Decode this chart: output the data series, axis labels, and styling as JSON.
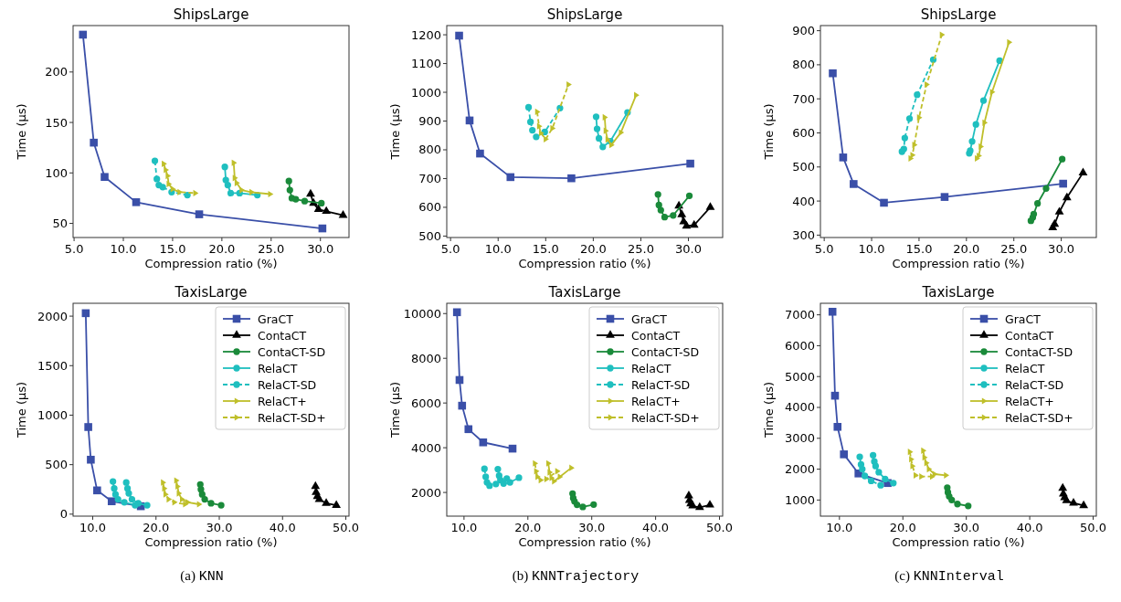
{
  "chart_data": [
    {
      "type": "line",
      "title": "ShipsLarge",
      "xlabel": "Compression ratio (%)",
      "ylabel": "Time (µs)",
      "legend": false,
      "xlim": [
        4.9,
        32.9
      ],
      "ylim": [
        36,
        246
      ],
      "xticks": [
        {
          "value": 5,
          "label": "5.0"
        },
        {
          "value": 10,
          "label": "10.0"
        },
        {
          "value": 15,
          "label": "15.0"
        },
        {
          "value": 20,
          "label": "20.0"
        },
        {
          "value": 25,
          "label": "25.0"
        },
        {
          "value": 30,
          "label": "30.0"
        }
      ],
      "yticks": [
        50,
        100,
        150,
        200
      ],
      "series": [
        {
          "color": "#3a4fa8",
          "marker": "square",
          "line_style": "solid",
          "x": [
            5.9,
            7.0,
            8.1,
            11.3,
            17.7,
            30.2
          ],
          "values": [
            237,
            130,
            96,
            71,
            59,
            45
          ]
        },
        {
          "color": "#000000",
          "marker": "triangle",
          "line_style": "solid",
          "x": [
            29.0,
            29.3,
            29.8,
            30.6,
            32.3
          ],
          "values": [
            79,
            70,
            64,
            62,
            58
          ]
        },
        {
          "color": "#1a8a3a",
          "marker": "circle",
          "line_style": "solid",
          "x": [
            26.8,
            26.9,
            27.1,
            27.5,
            28.4,
            30.1
          ],
          "values": [
            92,
            83,
            75,
            74,
            72,
            70
          ]
        },
        {
          "color": "#1fbfbf",
          "marker": "circle",
          "line_style": "solid",
          "x": [
            20.3,
            20.4,
            20.6,
            20.9,
            21.8,
            23.6
          ],
          "values": [
            106,
            93,
            88,
            80,
            80,
            78
          ]
        },
        {
          "color": "#1fbfbf",
          "marker": "circle",
          "line_style": "dashed",
          "x": [
            13.2,
            13.4,
            13.6,
            14.0,
            14.9,
            16.5
          ],
          "values": [
            112,
            94,
            88,
            86,
            81,
            78
          ]
        },
        {
          "color": "#bfbf2a",
          "marker": "triangle-right",
          "line_style": "solid",
          "x": [
            21.2,
            21.3,
            21.5,
            22.0,
            23.0,
            24.9
          ],
          "values": [
            110,
            95,
            90,
            83,
            81,
            79
          ]
        },
        {
          "color": "#bfbf2a",
          "marker": "triangle-right",
          "line_style": "dashed",
          "x": [
            14.1,
            14.3,
            14.5,
            14.6,
            15.0,
            15.7,
            17.3
          ],
          "values": [
            109,
            103,
            97,
            89,
            84,
            81,
            80
          ]
        }
      ]
    },
    {
      "type": "line",
      "title": "ShipsLarge",
      "xlabel": "Compression ratio (%)",
      "ylabel": "Time (µs)",
      "legend": false,
      "xlim": [
        4.6,
        33.6
      ],
      "ylim": [
        495,
        1232
      ],
      "xticks": [
        {
          "value": 5,
          "label": "5.0"
        },
        {
          "value": 10,
          "label": "10.0"
        },
        {
          "value": 15,
          "label": "15.0"
        },
        {
          "value": 20,
          "label": "20.0"
        },
        {
          "value": 25,
          "label": "25.0"
        },
        {
          "value": 30,
          "label": "30.0"
        }
      ],
      "yticks": [
        500,
        600,
        700,
        800,
        900,
        1000,
        1100,
        1200
      ],
      "series": [
        {
          "color": "#3a4fa8",
          "marker": "square",
          "line_style": "solid",
          "x": [
            5.9,
            7.0,
            8.1,
            11.3,
            17.7,
            30.2
          ],
          "values": [
            1197,
            902,
            787,
            705,
            701,
            752
          ]
        },
        {
          "color": "#000000",
          "marker": "triangle",
          "line_style": "solid",
          "x": [
            29.0,
            29.3,
            29.5,
            29.8,
            30.6,
            32.3
          ],
          "values": [
            605,
            575,
            550,
            535,
            538,
            600
          ]
        },
        {
          "color": "#1a8a3a",
          "marker": "circle",
          "line_style": "solid",
          "x": [
            26.8,
            26.9,
            27.1,
            27.5,
            28.4,
            30.1
          ],
          "values": [
            645,
            608,
            590,
            566,
            572,
            640
          ]
        },
        {
          "color": "#1fbfbf",
          "marker": "circle",
          "line_style": "solid",
          "x": [
            20.3,
            20.4,
            20.6,
            21.0,
            21.8,
            23.6
          ],
          "values": [
            915,
            873,
            840,
            810,
            830,
            930
          ]
        },
        {
          "color": "#1fbfbf",
          "marker": "circle",
          "line_style": "dashed",
          "x": [
            13.2,
            13.4,
            13.6,
            14.0,
            14.9,
            16.5
          ],
          "values": [
            948,
            897,
            868,
            845,
            862,
            945
          ]
        },
        {
          "color": "#bfbf2a",
          "marker": "triangle-right",
          "line_style": "solid",
          "x": [
            21.2,
            21.3,
            21.5,
            21.9,
            22.9,
            24.5
          ],
          "values": [
            913,
            866,
            836,
            817,
            860,
            990
          ]
        },
        {
          "color": "#bfbf2a",
          "marker": "triangle-right",
          "line_style": "dashed",
          "x": [
            14.1,
            14.3,
            14.5,
            15.0,
            15.7,
            17.4
          ],
          "values": [
            932,
            882,
            858,
            837,
            875,
            1027
          ]
        }
      ]
    },
    {
      "type": "line",
      "title": "ShipsLarge",
      "xlabel": "Compression ratio (%)",
      "ylabel": "Time (µs)",
      "legend": false,
      "xlim": [
        4.6,
        33.7
      ],
      "ylim": [
        293,
        915
      ],
      "xticks": [
        {
          "value": 5,
          "label": "5.0"
        },
        {
          "value": 10,
          "label": "10.0"
        },
        {
          "value": 15,
          "label": "15.0"
        },
        {
          "value": 20,
          "label": "20.0"
        },
        {
          "value": 25,
          "label": "25.0"
        },
        {
          "value": 30,
          "label": "30.0"
        }
      ],
      "yticks": [
        300,
        400,
        500,
        600,
        700,
        800,
        900
      ],
      "series": [
        {
          "color": "#3a4fa8",
          "marker": "square",
          "line_style": "solid",
          "x": [
            5.9,
            7.0,
            8.1,
            11.3,
            17.7,
            30.2
          ],
          "values": [
            775,
            528,
            450,
            395,
            412,
            451
          ]
        },
        {
          "color": "#000000",
          "marker": "triangle",
          "line_style": "solid",
          "x": [
            29.1,
            29.3,
            29.8,
            30.6,
            32.3
          ],
          "values": [
            322,
            332,
            368,
            410,
            483
          ]
        },
        {
          "color": "#1a8a3a",
          "marker": "circle",
          "line_style": "solid",
          "x": [
            26.8,
            27.0,
            27.1,
            27.5,
            28.4,
            30.1
          ],
          "values": [
            342,
            352,
            362,
            393,
            437,
            523
          ]
        },
        {
          "color": "#1fbfbf",
          "marker": "circle",
          "line_style": "solid",
          "x": [
            20.3,
            20.4,
            20.6,
            21.0,
            21.8,
            23.5
          ],
          "values": [
            540,
            548,
            575,
            625,
            695,
            812
          ]
        },
        {
          "color": "#1fbfbf",
          "marker": "circle",
          "line_style": "dashed",
          "x": [
            13.2,
            13.4,
            13.5,
            14.0,
            14.8,
            16.5
          ],
          "values": [
            545,
            553,
            585,
            642,
            712,
            815
          ]
        },
        {
          "color": "#bfbf2a",
          "marker": "triangle-right",
          "line_style": "solid",
          "x": [
            21.1,
            21.3,
            21.5,
            21.9,
            22.7,
            24.5
          ],
          "values": [
            525,
            533,
            560,
            630,
            720,
            866
          ]
        },
        {
          "color": "#bfbf2a",
          "marker": "triangle-right",
          "line_style": "dashed",
          "x": [
            14.1,
            14.3,
            14.5,
            15.0,
            15.8,
            17.4
          ],
          "values": [
            525,
            535,
            565,
            645,
            742,
            888
          ]
        }
      ]
    },
    {
      "type": "line",
      "title": "TaxisLarge",
      "xlabel": "Compression ratio (%)",
      "ylabel": "Time (µs)",
      "legend": "top right",
      "annotations": [
        "(a) KNN"
      ],
      "xlim": [
        6.9,
        50.5
      ],
      "ylim": [
        -20,
        2130
      ],
      "xticks": [
        {
          "value": 10,
          "label": "10.0"
        },
        {
          "value": 20,
          "label": "20.0"
        },
        {
          "value": 30,
          "label": "30.0"
        },
        {
          "value": 40,
          "label": "40.0"
        },
        {
          "value": 50,
          "label": "50.0"
        }
      ],
      "yticks": [
        0,
        500,
        1000,
        1500,
        2000
      ],
      "series": [
        {
          "name": "GraCT",
          "color": "#3a4fa8",
          "marker": "square",
          "line_style": "solid",
          "x": [
            8.9,
            9.3,
            9.7,
            10.7,
            13.0,
            17.6
          ],
          "values": [
            2030,
            880,
            550,
            240,
            130,
            80
          ]
        },
        {
          "name": "ContaCT",
          "color": "#000000",
          "marker": "triangle",
          "line_style": "solid",
          "x": [
            45.2,
            45.3,
            45.5,
            45.8,
            46.9,
            48.5
          ],
          "values": [
            280,
            220,
            180,
            150,
            110,
            90
          ]
        },
        {
          "name": "ContaCT-SD",
          "color": "#1a8a3a",
          "marker": "circle",
          "line_style": "solid",
          "x": [
            27.0,
            27.1,
            27.3,
            27.7,
            28.7,
            30.3
          ],
          "values": [
            300,
            250,
            200,
            150,
            110,
            90
          ]
        },
        {
          "name": "RelaCT",
          "color": "#1fbfbf",
          "marker": "circle",
          "line_style": "solid",
          "x": [
            15.3,
            15.5,
            15.7,
            16.2,
            17.2,
            18.6
          ],
          "values": [
            320,
            260,
            210,
            150,
            110,
            90
          ]
        },
        {
          "name": "RelaCT-SD",
          "color": "#1fbfbf",
          "marker": "circle",
          "line_style": "dashed",
          "x": [
            13.2,
            13.4,
            13.6,
            14.0,
            15.0,
            16.7
          ],
          "values": [
            330,
            260,
            200,
            150,
            120,
            90
          ]
        },
        {
          "name": "RelaCT+",
          "color": "#bfbf2a",
          "marker": "triangle-right",
          "line_style": "solid",
          "x": [
            23.2,
            23.4,
            23.6,
            24.1,
            25.0,
            26.8
          ],
          "values": [
            340,
            280,
            210,
            150,
            120,
            100
          ]
        },
        {
          "name": "RelaCT-SD+",
          "color": "#bfbf2a",
          "marker": "triangle-right",
          "line_style": "dashed",
          "x": [
            21.1,
            21.3,
            21.5,
            22.0,
            22.9,
            24.6
          ],
          "values": [
            320,
            260,
            200,
            150,
            120,
            100
          ]
        }
      ]
    },
    {
      "type": "line",
      "title": "TaxisLarge",
      "xlabel": "Compression ratio (%)",
      "ylabel": "Time (µs)",
      "legend": "top right",
      "annotations": [
        "(b) KNNTrajectory"
      ],
      "xlim": [
        7.3,
        50.5
      ],
      "ylim": [
        941,
        10460
      ],
      "xticks": [
        {
          "value": 10,
          "label": "10.0"
        },
        {
          "value": 20,
          "label": "20.0"
        },
        {
          "value": 30,
          "label": "30.0"
        },
        {
          "value": 40,
          "label": "40.0"
        },
        {
          "value": 50,
          "label": "50.0"
        }
      ],
      "yticks": [
        2000,
        4000,
        6000,
        8000,
        10000
      ],
      "series": [
        {
          "name": "GraCT",
          "color": "#3a4fa8",
          "marker": "square",
          "line_style": "solid",
          "x": [
            8.9,
            9.3,
            9.7,
            10.7,
            13.0,
            17.6
          ],
          "values": [
            10060,
            7030,
            5880,
            4830,
            4240,
            3960
          ]
        },
        {
          "name": "ContaCT",
          "color": "#000000",
          "marker": "triangle",
          "line_style": "solid",
          "x": [
            45.2,
            45.3,
            45.5,
            45.8,
            46.9,
            48.5
          ],
          "values": [
            1850,
            1650,
            1500,
            1400,
            1330,
            1440
          ]
        },
        {
          "name": "ContaCT-SD",
          "color": "#1a8a3a",
          "marker": "circle",
          "line_style": "solid",
          "x": [
            27.0,
            27.1,
            27.3,
            27.7,
            28.6,
            30.3
          ],
          "values": [
            1950,
            1750,
            1600,
            1450,
            1350,
            1460
          ]
        },
        {
          "name": "RelaCT",
          "color": "#1fbfbf",
          "marker": "circle",
          "line_style": "solid",
          "x": [
            15.3,
            15.5,
            15.7,
            16.2,
            17.2,
            18.6
          ],
          "values": [
            3040,
            2750,
            2550,
            2400,
            2450,
            2660
          ]
        },
        {
          "name": "RelaCT-SD",
          "color": "#1fbfbf",
          "marker": "circle",
          "line_style": "dashed",
          "x": [
            13.2,
            13.4,
            13.6,
            14.0,
            15.0,
            16.7
          ],
          "values": [
            3060,
            2700,
            2450,
            2300,
            2380,
            2620
          ]
        },
        {
          "name": "RelaCT+",
          "color": "#bfbf2a",
          "marker": "triangle-right",
          "line_style": "solid",
          "x": [
            23.2,
            23.4,
            23.7,
            24.1,
            25.0,
            26.8
          ],
          "values": [
            3300,
            2900,
            2650,
            2500,
            2700,
            3100
          ]
        },
        {
          "name": "RelaCT-SD+",
          "color": "#bfbf2a",
          "marker": "triangle-right",
          "line_style": "dashed",
          "x": [
            21.1,
            21.3,
            21.5,
            22.0,
            22.9,
            24.6
          ],
          "values": [
            3300,
            2950,
            2700,
            2550,
            2600,
            2950
          ]
        }
      ]
    },
    {
      "type": "line",
      "title": "TaxisLarge",
      "xlabel": "Compression ratio (%)",
      "ylabel": "Time (µs)",
      "legend": "top right",
      "annotations": [
        "(c) KNNInterval"
      ],
      "xlim": [
        7.0,
        50.5
      ],
      "ylim": [
        478,
        7374
      ],
      "xticks": [
        {
          "value": 10,
          "label": "10.0"
        },
        {
          "value": 20,
          "label": "20.0"
        },
        {
          "value": 30,
          "label": "30.0"
        },
        {
          "value": 40,
          "label": "40.0"
        },
        {
          "value": 50,
          "label": "50.0"
        }
      ],
      "yticks": [
        1000,
        2000,
        3000,
        4000,
        5000,
        6000,
        7000
      ],
      "series": [
        {
          "name": "GraCT",
          "color": "#3a4fa8",
          "marker": "square",
          "line_style": "solid",
          "x": [
            8.9,
            9.3,
            9.7,
            10.7,
            13.0,
            17.6
          ],
          "values": [
            7100,
            4380,
            3370,
            2480,
            1860,
            1550
          ]
        },
        {
          "name": "ContaCT",
          "color": "#000000",
          "marker": "triangle",
          "line_style": "solid",
          "x": [
            45.2,
            45.3,
            45.5,
            45.8,
            46.9,
            48.5
          ],
          "values": [
            1380,
            1200,
            1080,
            980,
            900,
            820
          ]
        },
        {
          "name": "ContaCT-SD",
          "color": "#1a8a3a",
          "marker": "circle",
          "line_style": "solid",
          "x": [
            27.0,
            27.1,
            27.3,
            27.7,
            28.6,
            30.3
          ],
          "values": [
            1400,
            1250,
            1120,
            1000,
            870,
            810
          ]
        },
        {
          "name": "RelaCT",
          "color": "#1fbfbf",
          "marker": "circle",
          "line_style": "solid",
          "x": [
            15.3,
            15.5,
            15.7,
            16.2,
            17.2,
            18.5
          ],
          "values": [
            2450,
            2250,
            2100,
            1900,
            1680,
            1550
          ]
        },
        {
          "name": "RelaCT-SD",
          "color": "#1fbfbf",
          "marker": "circle",
          "line_style": "dashed",
          "x": [
            13.2,
            13.4,
            13.6,
            14.0,
            15.0,
            16.5
          ],
          "values": [
            2400,
            2150,
            2000,
            1780,
            1620,
            1480
          ]
        },
        {
          "name": "RelaCT+",
          "color": "#bfbf2a",
          "marker": "triangle-right",
          "line_style": "solid",
          "x": [
            23.2,
            23.4,
            23.7,
            24.1,
            25.0,
            26.8
          ],
          "values": [
            2600,
            2380,
            2200,
            2000,
            1840,
            1800
          ]
        },
        {
          "name": "RelaCT-SD+",
          "color": "#bfbf2a",
          "marker": "triangle-right",
          "line_style": "dashed",
          "x": [
            21.1,
            21.3,
            21.5,
            22.0,
            22.9,
            24.6
          ],
          "values": [
            2560,
            2320,
            2100,
            1800,
            1760,
            1760
          ]
        }
      ]
    }
  ]
}
